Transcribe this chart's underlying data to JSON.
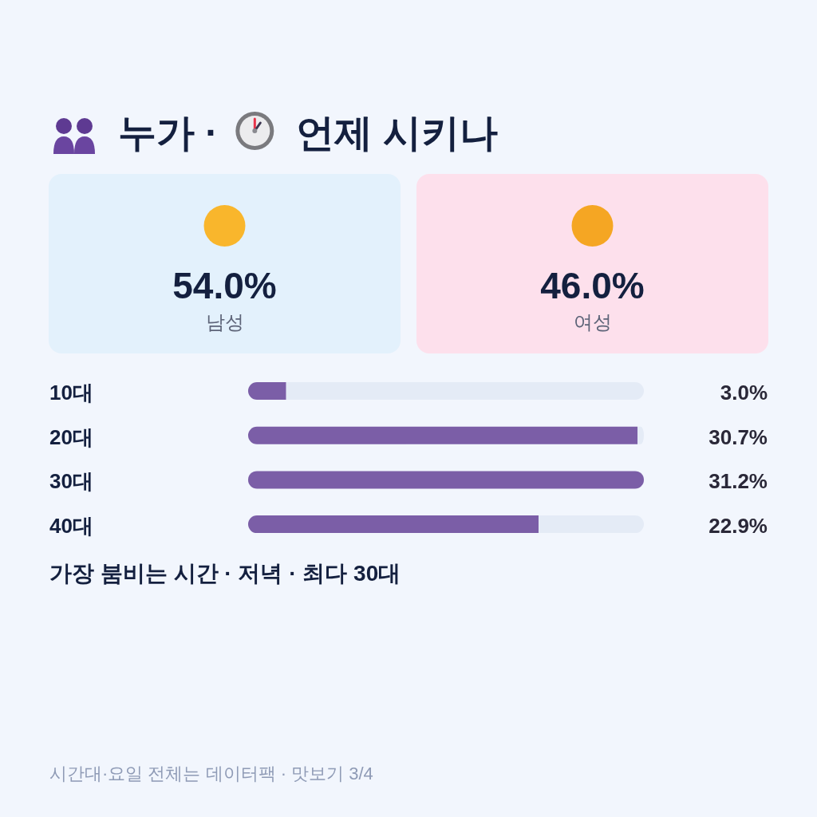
{
  "chart_data": [
    {
      "type": "other",
      "title": "누가 · 언제 시키나",
      "categories": [
        "남성",
        "여성"
      ],
      "annotations": [
        "54.0%",
        "46.0%"
      ],
      "colors": [
        "#e3f1fc",
        "#fde0ec"
      ]
    },
    {
      "type": "bar",
      "orientation": "horizontal",
      "stacked": true,
      "categories": [
        "10대",
        "20대",
        "30대",
        "40대"
      ],
      "series": [
        {
          "color": "#7b5ea7",
          "values": [
            3.0,
            30.7,
            31.2,
            22.9
          ],
          "value_labels": [
            "3.0%",
            "30.7%",
            "31.2%",
            "22.9%"
          ]
        },
        {
          "color": "#e4ebf6",
          "values": [
            28.2,
            0.5,
            0.0,
            8.3
          ]
        }
      ],
      "annotations": [
        "가장 붐비는 시간 · 저녁 · 최다 30대",
        "시간대·요일 전체는 데이터팩 · 맛보기 3/4"
      ]
    }
  ]
}
